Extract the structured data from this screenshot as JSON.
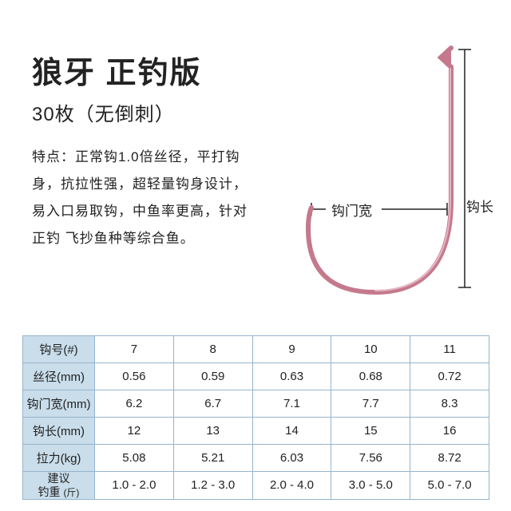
{
  "title": "狼牙 正钓版",
  "subtitle": "30枚（无倒刺）",
  "features": "特点：正常钩1.0倍丝径，平打钩身，抗拉性强，超轻量钩身设计，易入口易取钩，中鱼率更高，针对正钓 飞抄鱼种等综合鱼。",
  "diagram": {
    "label_gap": "钩门宽",
    "label_length": "钩长",
    "hook_color": "#c5798c",
    "hook_highlight": "#e6b5c2",
    "marker_color": "#222222"
  },
  "table": {
    "headers": [
      "钩号(#)",
      "丝径(mm)",
      "钩门宽(mm)",
      "钩长(mm)",
      "拉力(kg)",
      "建议\n钓重"
    ],
    "header_suffix_unit": "(斤)",
    "columns": [
      "7",
      "8",
      "9",
      "10",
      "11"
    ],
    "rows": [
      [
        "0.56",
        "0.59",
        "0.63",
        "0.68",
        "0.72"
      ],
      [
        "6.2",
        "6.7",
        "7.1",
        "7.7",
        "8.3"
      ],
      [
        "12",
        "13",
        "14",
        "15",
        "16"
      ],
      [
        "5.08",
        "5.21",
        "6.03",
        "7.56",
        "8.72"
      ],
      [
        "1.0 - 2.0",
        "1.2 - 3.0",
        "2.0 - 4.0",
        "3.0 - 5.0",
        "5.0 - 7.0"
      ]
    ],
    "header_bg": "#c9ddea",
    "border_color": "#95b4ce"
  }
}
